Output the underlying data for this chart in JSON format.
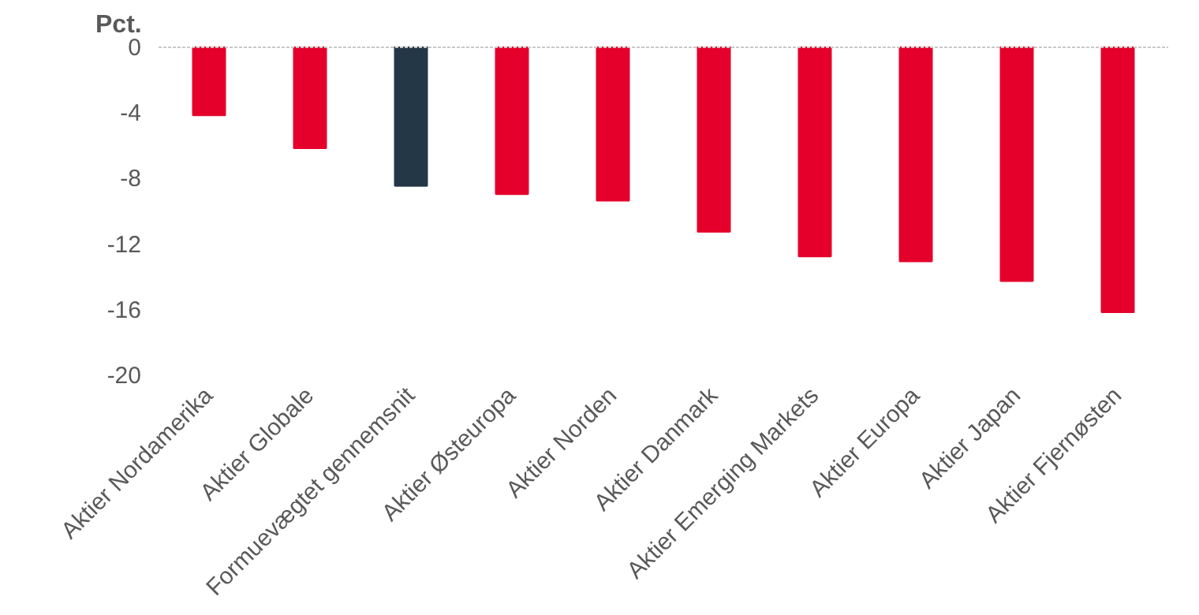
{
  "chart_data": {
    "type": "bar",
    "ylabel": "Pct.",
    "categories": [
      "Aktier Nordamerika",
      "Aktier Globale",
      "Formuevægtet gennemsnit",
      "Aktier Østeuropa",
      "Aktier Norden",
      "Aktier Danmark",
      "Aktier Emerging Markets",
      "Aktier Europa",
      "Aktier Japan",
      "Aktier Fjernøsten"
    ],
    "values": [
      -4.2,
      -6.2,
      -8.5,
      -9.0,
      -9.4,
      -11.3,
      -12.8,
      -13.1,
      -14.3,
      -16.2
    ],
    "colors": [
      "#e4002b",
      "#e4002b",
      "#243746",
      "#e4002b",
      "#e4002b",
      "#e4002b",
      "#e4002b",
      "#e4002b",
      "#e4002b",
      "#e4002b"
    ],
    "ylim": [
      -20,
      0
    ],
    "yticks": [
      0,
      -4,
      -8,
      -12,
      -16,
      -20
    ],
    "grid": false
  }
}
